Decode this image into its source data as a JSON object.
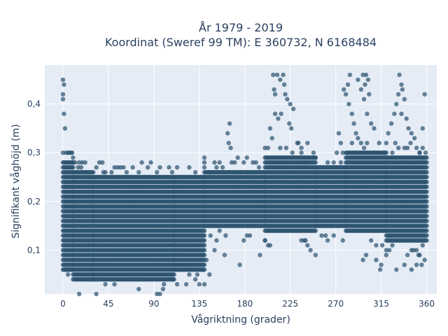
{
  "chart_data": {
    "type": "scatter",
    "title_line1": "År 1979 - 2019",
    "title_line2": "Koordinat (Sweref 99 TM): E 360732, N 6168484",
    "xlabel": "Vågriktning (grader)",
    "ylabel": "Signifikant våghöjd (m)",
    "xlim": [
      -18,
      370
    ],
    "ylim": [
      0.01,
      0.48
    ],
    "x_ticks": [
      0,
      45,
      90,
      135,
      180,
      225,
      270,
      315,
      360
    ],
    "x_tick_labels": [
      "0",
      "45",
      "90",
      "135",
      "180",
      "225",
      "270",
      "315",
      "360"
    ],
    "y_ticks": [
      0.1,
      0.2,
      0.3,
      0.4
    ],
    "y_tick_labels": [
      "0,1",
      "0,2",
      "0,3",
      "0,4"
    ],
    "grid": true,
    "marker_color": "#2e5570",
    "plot_bg_color": "#e5ecf6",
    "density_profile": [
      {
        "from": 0,
        "to": 10,
        "low": 0.06,
        "high": 0.28
      },
      {
        "from": 10,
        "to": 30,
        "low": 0.04,
        "high": 0.26
      },
      {
        "from": 30,
        "to": 110,
        "low": 0.04,
        "high": 0.25
      },
      {
        "from": 110,
        "to": 140,
        "low": 0.06,
        "high": 0.25
      },
      {
        "from": 140,
        "to": 200,
        "low": 0.15,
        "high": 0.26
      },
      {
        "from": 200,
        "to": 250,
        "low": 0.14,
        "high": 0.29
      },
      {
        "from": 250,
        "to": 280,
        "low": 0.15,
        "high": 0.27
      },
      {
        "from": 280,
        "to": 320,
        "low": 0.14,
        "high": 0.3
      },
      {
        "from": 320,
        "to": 360,
        "low": 0.12,
        "high": 0.29
      }
    ],
    "outlier_points": [
      [
        0,
        0.45
      ],
      [
        0,
        0.42
      ],
      [
        1,
        0.44
      ],
      [
        0,
        0.41
      ],
      [
        1,
        0.38
      ],
      [
        2,
        0.35
      ],
      [
        0,
        0.3
      ],
      [
        3,
        0.3
      ],
      [
        5,
        0.3
      ],
      [
        8,
        0.3
      ],
      [
        10,
        0.29
      ],
      [
        12,
        0.28
      ],
      [
        15,
        0.27
      ],
      [
        18,
        0.27
      ],
      [
        2,
        0.07
      ],
      [
        4,
        0.06
      ],
      [
        5,
        0.05
      ],
      [
        8,
        0.06
      ],
      [
        40,
        0.26
      ],
      [
        48,
        0.26
      ],
      [
        100,
        0.03
      ],
      [
        108,
        0.04
      ],
      [
        120,
        0.07
      ],
      [
        133,
        0.05
      ],
      [
        135,
        0.03
      ],
      [
        138,
        0.06
      ],
      [
        142,
        0.08
      ],
      [
        145,
        0.05
      ],
      [
        150,
        0.1
      ],
      [
        160,
        0.09
      ],
      [
        175,
        0.07
      ],
      [
        195,
        0.09
      ],
      [
        140,
        0.27
      ],
      [
        150,
        0.28
      ],
      [
        145,
        0.26
      ],
      [
        163,
        0.34
      ],
      [
        164,
        0.32
      ],
      [
        166,
        0.31
      ],
      [
        165,
        0.36
      ],
      [
        200,
        0.12
      ],
      [
        205,
        0.11
      ],
      [
        208,
        0.46
      ],
      [
        209,
        0.43
      ],
      [
        210,
        0.42
      ],
      [
        212,
        0.46
      ],
      [
        215,
        0.45
      ],
      [
        218,
        0.46
      ],
      [
        219,
        0.44
      ],
      [
        220,
        0.42
      ],
      [
        222,
        0.41
      ],
      [
        225,
        0.4
      ],
      [
        228,
        0.39
      ],
      [
        205,
        0.35
      ],
      [
        207,
        0.33
      ],
      [
        210,
        0.38
      ],
      [
        213,
        0.37
      ],
      [
        216,
        0.38
      ],
      [
        224,
        0.36
      ],
      [
        226,
        0.35
      ],
      [
        232,
        0.32
      ],
      [
        236,
        0.3
      ],
      [
        240,
        0.28
      ],
      [
        240,
        0.12
      ],
      [
        245,
        0.1
      ],
      [
        250,
        0.09
      ],
      [
        260,
        0.13
      ],
      [
        270,
        0.27
      ],
      [
        275,
        0.28
      ],
      [
        273,
        0.34
      ],
      [
        275,
        0.32
      ],
      [
        278,
        0.43
      ],
      [
        280,
        0.42
      ],
      [
        282,
        0.44
      ],
      [
        284,
        0.46
      ],
      [
        283,
        0.4
      ],
      [
        286,
        0.38
      ],
      [
        288,
        0.36
      ],
      [
        290,
        0.34
      ],
      [
        292,
        0.45
      ],
      [
        295,
        0.43
      ],
      [
        297,
        0.46
      ],
      [
        299,
        0.44
      ],
      [
        300,
        0.46
      ],
      [
        302,
        0.45
      ],
      [
        303,
        0.42
      ],
      [
        298,
        0.41
      ],
      [
        301,
        0.38
      ],
      [
        305,
        0.36
      ],
      [
        308,
        0.35
      ],
      [
        297,
        0.08
      ],
      [
        300,
        0.09
      ],
      [
        305,
        0.12
      ],
      [
        310,
        0.11
      ],
      [
        314,
        0.06
      ],
      [
        315,
        0.07
      ],
      [
        320,
        0.1
      ],
      [
        325,
        0.13
      ],
      [
        318,
        0.3
      ],
      [
        320,
        0.32
      ],
      [
        322,
        0.34
      ],
      [
        325,
        0.36
      ],
      [
        328,
        0.38
      ],
      [
        330,
        0.4
      ],
      [
        332,
        0.42
      ],
      [
        335,
        0.44
      ],
      [
        333,
        0.46
      ],
      [
        336,
        0.43
      ],
      [
        338,
        0.41
      ],
      [
        335,
        0.38
      ],
      [
        340,
        0.37
      ],
      [
        342,
        0.35
      ],
      [
        345,
        0.34
      ],
      [
        348,
        0.33
      ],
      [
        350,
        0.31
      ],
      [
        353,
        0.3
      ],
      [
        355,
        0.29
      ],
      [
        358,
        0.42
      ],
      [
        356,
        0.35
      ],
      [
        330,
        0.06
      ],
      [
        338,
        0.07
      ],
      [
        345,
        0.06
      ],
      [
        350,
        0.07
      ],
      [
        355,
        0.07
      ],
      [
        358,
        0.08
      ],
      [
        345,
        0.1
      ],
      [
        352,
        0.09
      ],
      [
        320,
        0.09
      ],
      [
        310,
        0.08
      ]
    ]
  }
}
